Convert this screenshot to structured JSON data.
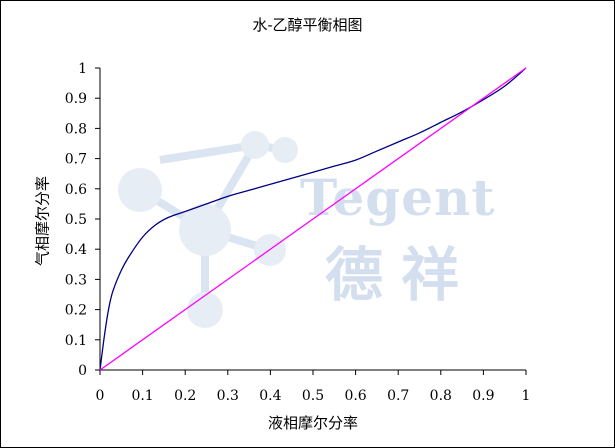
{
  "watermark": {
    "text_en": "Tegent",
    "text_cn": "德祥"
  },
  "chart_data": {
    "type": "line",
    "title": "水-乙醇平衡相图",
    "xlabel": "液相摩尔分率",
    "ylabel": "气相摩尔分率",
    "xlim": [
      0,
      1
    ],
    "ylim": [
      0,
      1
    ],
    "xticks": [
      "0",
      "0.1",
      "0.2",
      "0.3",
      "0.4",
      "0.5",
      "0.6",
      "0.7",
      "0.8",
      "0.9",
      "1"
    ],
    "yticks": [
      "0",
      "0.1",
      "0.2",
      "0.3",
      "0.4",
      "0.5",
      "0.6",
      "0.7",
      "0.8",
      "0.9",
      "1"
    ],
    "grid": false,
    "legend": "none",
    "series": [
      {
        "color": "#000080",
        "x": [
          0,
          0.01,
          0.02,
          0.03,
          0.05,
          0.07,
          0.1,
          0.13,
          0.16,
          0.2,
          0.25,
          0.3,
          0.35,
          0.4,
          0.45,
          0.5,
          0.55,
          0.6,
          0.65,
          0.7,
          0.75,
          0.8,
          0.85,
          0.9,
          0.95,
          1.0
        ],
        "y": [
          0,
          0.11,
          0.2,
          0.26,
          0.33,
          0.38,
          0.44,
          0.48,
          0.505,
          0.525,
          0.55,
          0.575,
          0.595,
          0.615,
          0.635,
          0.655,
          0.675,
          0.695,
          0.725,
          0.755,
          0.785,
          0.82,
          0.855,
          0.895,
          0.94,
          1.0
        ]
      },
      {
        "color": "#ff00ff",
        "x": [
          0,
          1
        ],
        "y": [
          0,
          1
        ]
      }
    ]
  }
}
